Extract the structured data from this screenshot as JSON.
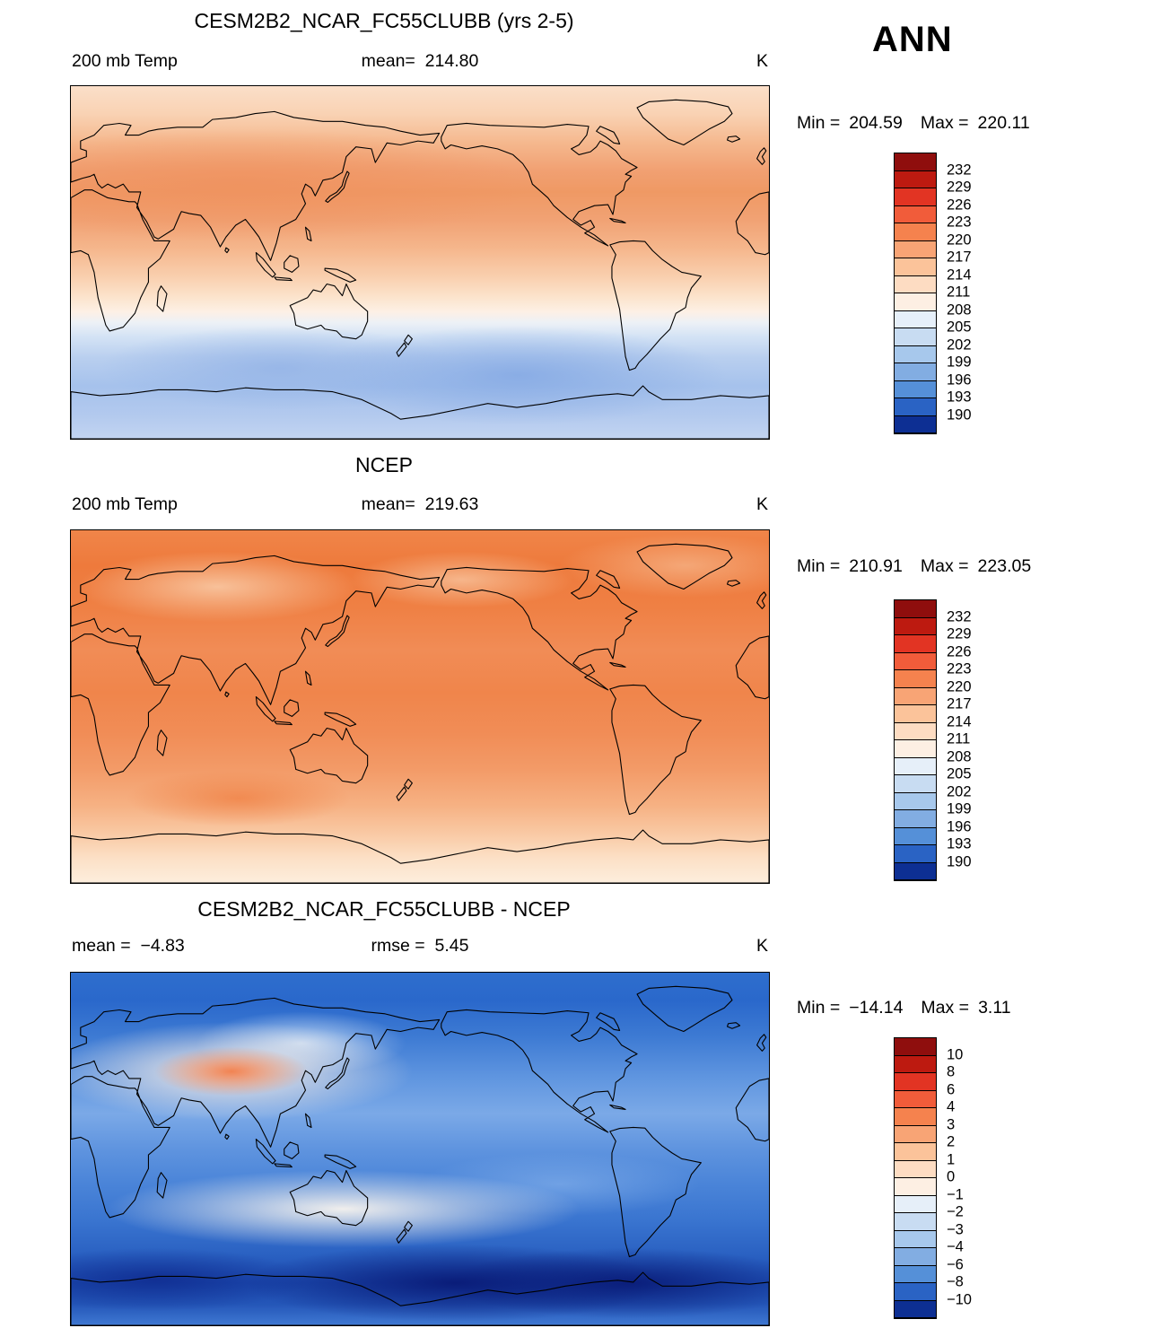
{
  "page": {
    "season_label": "ANN"
  },
  "panels": [
    {
      "title": "CESM2B2_NCAR_FC55CLUBB (yrs 2-5)",
      "variable_label": "200 mb Temp",
      "units": "K",
      "stats": {
        "mean_label": "mean=",
        "mean_value": "214.80"
      },
      "minmax": {
        "min_label": "Min =",
        "min_value": "204.59",
        "max_label": "Max =",
        "max_value": "220.11"
      },
      "colorbar_labels": [
        "232",
        "229",
        "226",
        "223",
        "220",
        "217",
        "214",
        "211",
        "208",
        "205",
        "202",
        "199",
        "196",
        "193",
        "190"
      ]
    },
    {
      "title": "NCEP",
      "variable_label": "200 mb Temp",
      "units": "K",
      "stats": {
        "mean_label": "mean=",
        "mean_value": "219.63"
      },
      "minmax": {
        "min_label": "Min =",
        "min_value": "210.91",
        "max_label": "Max =",
        "max_value": "223.05"
      },
      "colorbar_labels": [
        "232",
        "229",
        "226",
        "223",
        "220",
        "217",
        "214",
        "211",
        "208",
        "205",
        "202",
        "199",
        "196",
        "193",
        "190"
      ]
    },
    {
      "title": "CESM2B2_NCAR_FC55CLUBB - NCEP",
      "units": "K",
      "stats": {
        "mean_label": "mean =",
        "mean_value": "−4.83",
        "rmse_label": "rmse =",
        "rmse_value": "5.45"
      },
      "minmax": {
        "min_label": "Min =",
        "min_value": "−14.14",
        "max_label": "Max =",
        "max_value": "3.11"
      },
      "colorbar_labels": [
        "10",
        "8",
        "6",
        "4",
        "3",
        "2",
        "1",
        "0",
        "−1",
        "−2",
        "−3",
        "−4",
        "−6",
        "−8",
        "−10"
      ]
    }
  ],
  "colorbar": {
    "orientation": "vertical",
    "colors": [
      "#8f0e0d",
      "#bd1a10",
      "#e23423",
      "#f15c3a",
      "#f5824e",
      "#f8a475",
      "#fbc39a",
      "#fddcc2",
      "#fdefe3",
      "#e6eff9",
      "#c8dcf2",
      "#a7c8ec",
      "#82ade2",
      "#5590d8",
      "#2a63c4",
      "#0d2f93"
    ]
  },
  "chart_data": [
    {
      "type": "heatmap",
      "panel": "model",
      "title": "CESM2B2_NCAR_FC55CLUBB (yrs 2-5)",
      "variable": "200 mb Temp",
      "units": "K",
      "season": "ANN",
      "domain": "global latitude-longitude map, 0-360E, 90S-90N",
      "mean": 214.8,
      "min": 204.59,
      "max": 220.11,
      "contour_levels": [
        190,
        193,
        196,
        199,
        202,
        205,
        208,
        211,
        214,
        217,
        220,
        223,
        226,
        229,
        232
      ],
      "legend_position": "right vertical colorbar",
      "field_description": "Warm 214-220 K shading over the tropics and northern hemisphere with the warmest salmon band across subtropical Africa/Asia; cream 211-214 K near the poles of the NH; values drop below 211 K south of ~45S with coldest blues ~205-208 K near 60S around Antarctica."
    },
    {
      "type": "heatmap",
      "panel": "observations",
      "title": "NCEP",
      "variable": "200 mb Temp",
      "units": "K",
      "season": "ANN",
      "domain": "global latitude-longitude map, 0-360E, 90S-90N",
      "mean": 219.63,
      "min": 210.91,
      "max": 223.05,
      "contour_levels": [
        190,
        193,
        196,
        199,
        202,
        205,
        208,
        211,
        214,
        217,
        220,
        223,
        226,
        229,
        232
      ],
      "legend_position": "right vertical colorbar",
      "field_description": "Nearly uniform strong orange 217-223 K over most of the globe, warmest 220-223 K in the northern hemisphere; shading lightens toward the Antarctic edge with a pale 211-214 K strip at the southern boundary."
    },
    {
      "type": "heatmap",
      "panel": "difference (model minus observations)",
      "title": "CESM2B2_NCAR_FC55CLUBB - NCEP",
      "variable": "200 mb Temp difference",
      "units": "K",
      "season": "ANN",
      "domain": "global latitude-longitude map, 0-360E, 90S-90N",
      "mean": -4.83,
      "rmse": 5.45,
      "min": -14.14,
      "max": 3.11,
      "contour_levels": [
        -10,
        -8,
        -6,
        -4,
        -3,
        -2,
        -1,
        0,
        1,
        2,
        3,
        4,
        6,
        8,
        10
      ],
      "legend_position": "right vertical colorbar",
      "field_description": "Model colder than NCEP almost everywhere (-3 to -8 K blue shading); small positive patch up to ~+3 K (orange core in white blob) over Mongolia/Siberia; near-zero white band over Australia; strongest negative differences below -10 K (dark navy) in the southern ocean ~55-65S."
    }
  ]
}
